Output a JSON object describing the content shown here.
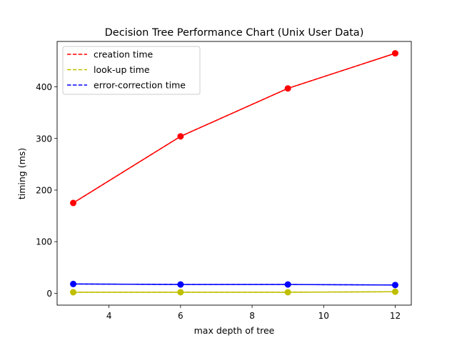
{
  "chart_data": {
    "type": "line",
    "title": "Decision Tree Performance Chart (Unix User Data)",
    "xlabel": "max depth of tree",
    "ylabel": "timing (ms)",
    "x": [
      3,
      6,
      9,
      12
    ],
    "xlim": [
      2.55,
      12.45
    ],
    "ylim": [
      -23,
      488
    ],
    "xticks": [
      4,
      6,
      8,
      10,
      12
    ],
    "yticks": [
      0,
      100,
      200,
      300,
      400
    ],
    "grid": false,
    "legend_position": "upper-left",
    "series": [
      {
        "name": "creation time",
        "color": "#ff0000",
        "values": [
          175,
          304,
          397,
          465
        ]
      },
      {
        "name": "look-up time",
        "color": "#bfbf00",
        "values": [
          2,
          2,
          2,
          3
        ]
      },
      {
        "name": "error-correction time",
        "color": "#0000ff",
        "values": [
          18,
          17,
          17,
          16
        ]
      }
    ],
    "marker_colors": [
      "#ff0000",
      "#bfbf00",
      "#0000ff"
    ]
  }
}
